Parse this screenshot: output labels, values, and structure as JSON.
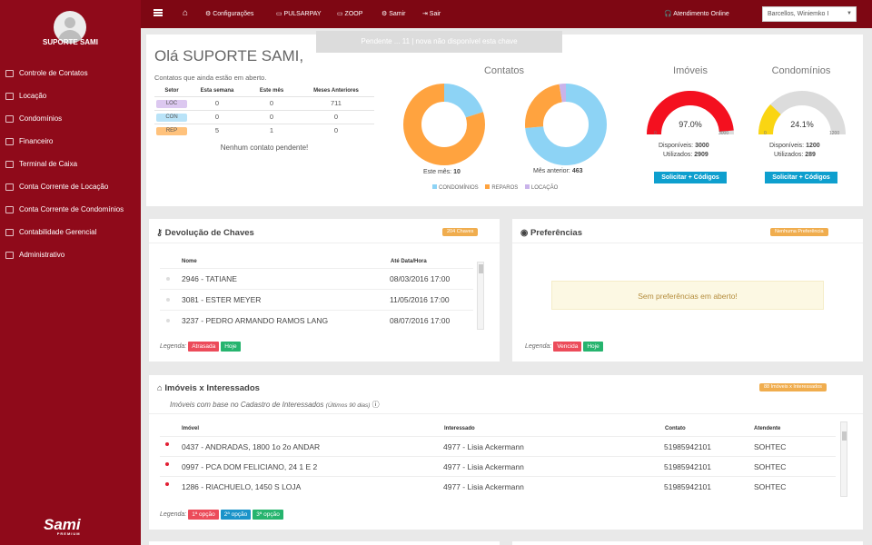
{
  "sidebar": {
    "user_name": "SUPORTE SAMI",
    "items": [
      {
        "label": "Controle de Contatos",
        "icon": "table-icon"
      },
      {
        "label": "Locação",
        "icon": "home-icon"
      },
      {
        "label": "Condomínios",
        "icon": "building-icon"
      },
      {
        "label": "Financeiro",
        "icon": "money-icon"
      },
      {
        "label": "Terminal de Caixa",
        "icon": "bank-icon"
      },
      {
        "label": "Conta Corrente de Locação",
        "icon": "card-icon"
      },
      {
        "label": "Conta Corrente de Condomínios",
        "icon": "card-icon"
      },
      {
        "label": "Contabilidade Gerencial",
        "icon": "calculator-icon"
      },
      {
        "label": "Administrativo",
        "icon": "gear-icon"
      }
    ],
    "logo": "Sami",
    "logo_sub": "PREMIUM"
  },
  "topbar": {
    "config": "⚙ Configurações",
    "pulsarpay": "▭ PULSARPAY",
    "zoop": "▭ ZOOP",
    "samir": "⚙ Samir",
    "sair": "⇥ Sair",
    "atendimento": "🎧 Atendimento Online",
    "branch": "Barcellos, Winiemko I"
  },
  "toast": "Pendente ... 11 | nova não disponível esta chave",
  "greeting": "Olá SUPORTE SAMI,",
  "greeting_sub": "Contatos que ainda estão em aberto.",
  "contacts_table": {
    "headers": [
      "Setor",
      "Esta semana",
      "Este mês",
      "Meses Anteriores"
    ],
    "rows": [
      {
        "setor": "LOC",
        "semana": "0",
        "mes": "0",
        "anteriores": "711"
      },
      {
        "setor": "CON",
        "semana": "0",
        "mes": "0",
        "anteriores": "0"
      },
      {
        "setor": "REP",
        "semana": "5",
        "mes": "1",
        "anteriores": "0"
      }
    ],
    "empty_msg": "Nenhum contato pendente!"
  },
  "chart_data": [
    {
      "type": "pie",
      "title": "Contatos",
      "caption_label": "Este mês:",
      "caption_value": "10",
      "labels": [
        "CONDOMÍNIOS",
        "REPAROS",
        "LOCAÇÃO"
      ],
      "values": [
        2,
        8,
        0
      ]
    },
    {
      "type": "pie",
      "caption_label": "Mês anterior:",
      "caption_value": "463",
      "labels": [
        "CONDOMÍNIOS",
        "REPAROS",
        "LOCAÇÃO"
      ],
      "values": [
        340,
        110,
        13
      ]
    }
  ],
  "legend_colors": {
    "condominios": "#8dd3f5",
    "reparos": "#ffa33f",
    "locacao": "#c9b3ea"
  },
  "gauges": {
    "imoveis": {
      "title": "Imóveis",
      "percent": 97.0,
      "percent_label": "97.0%",
      "min": "0",
      "max": "3000",
      "color": "#f4101f",
      "disp_label": "Disponíveis:",
      "disp_value": "3000",
      "util_label": "Utilizados:",
      "util_value": "2909",
      "button": "Solicitar + Códigos"
    },
    "condominios": {
      "title": "Condomínios",
      "percent": 24.1,
      "percent_label": "24.1%",
      "min": "0",
      "max": "1200",
      "color": "#fad512",
      "disp_label": "Disponíveis:",
      "disp_value": "1200",
      "util_label": "Utilizados:",
      "util_value": "289",
      "button": "Solicitar + Códigos"
    }
  },
  "devolucao": {
    "title": "Devolução de Chaves",
    "badge": "204 Chaves",
    "headers": [
      "Nome",
      "Até Data/Hora"
    ],
    "rows": [
      {
        "nome": "2946 - TATIANE",
        "data": "08/03/2016 17:00"
      },
      {
        "nome": "3081 - ESTER MEYER",
        "data": "11/05/2016 17:00"
      },
      {
        "nome": "3237 - PEDRO ARMANDO RAMOS LANG",
        "data": "08/07/2016 17:00"
      }
    ],
    "legend": "Legenda:",
    "tags": [
      "Atrasada",
      "Hoje"
    ]
  },
  "preferencias": {
    "title": "Preferências",
    "badge": "Nenhuma Preferência",
    "empty": "Sem preferências em aberto!",
    "legend": "Legenda:",
    "tags": [
      "Vencida",
      "Hoje"
    ]
  },
  "imoveis": {
    "title": "Imóveis x Interessados",
    "badge": "88 Imóveis x Interessados",
    "subtitle": "Imóveis com base no Cadastro de Interessados",
    "subtitle_small": "(Últimos 90 dias)",
    "headers": [
      "Imóvel",
      "Interessado",
      "Contato",
      "Atendente"
    ],
    "rows": [
      {
        "imovel": "0437 - ANDRADAS, 1800 1o 2o ANDAR",
        "interessado": "4977 - Lisia Ackermann",
        "contato": "51985942101",
        "atendente": "SOHTEC"
      },
      {
        "imovel": "0997 - PCA DOM FELICIANO, 24 1 E 2",
        "interessado": "4977 - Lisia Ackermann",
        "contato": "51985942101",
        "atendente": "SOHTEC"
      },
      {
        "imovel": "1286 - RIACHUELO, 1450 S LOJA",
        "interessado": "4977 - Lisia Ackermann",
        "contato": "51985942101",
        "atendente": "SOHTEC"
      }
    ],
    "legend": "Legenda:",
    "tags": [
      "1ª opção",
      "2ª opção",
      "3ª opção"
    ]
  }
}
